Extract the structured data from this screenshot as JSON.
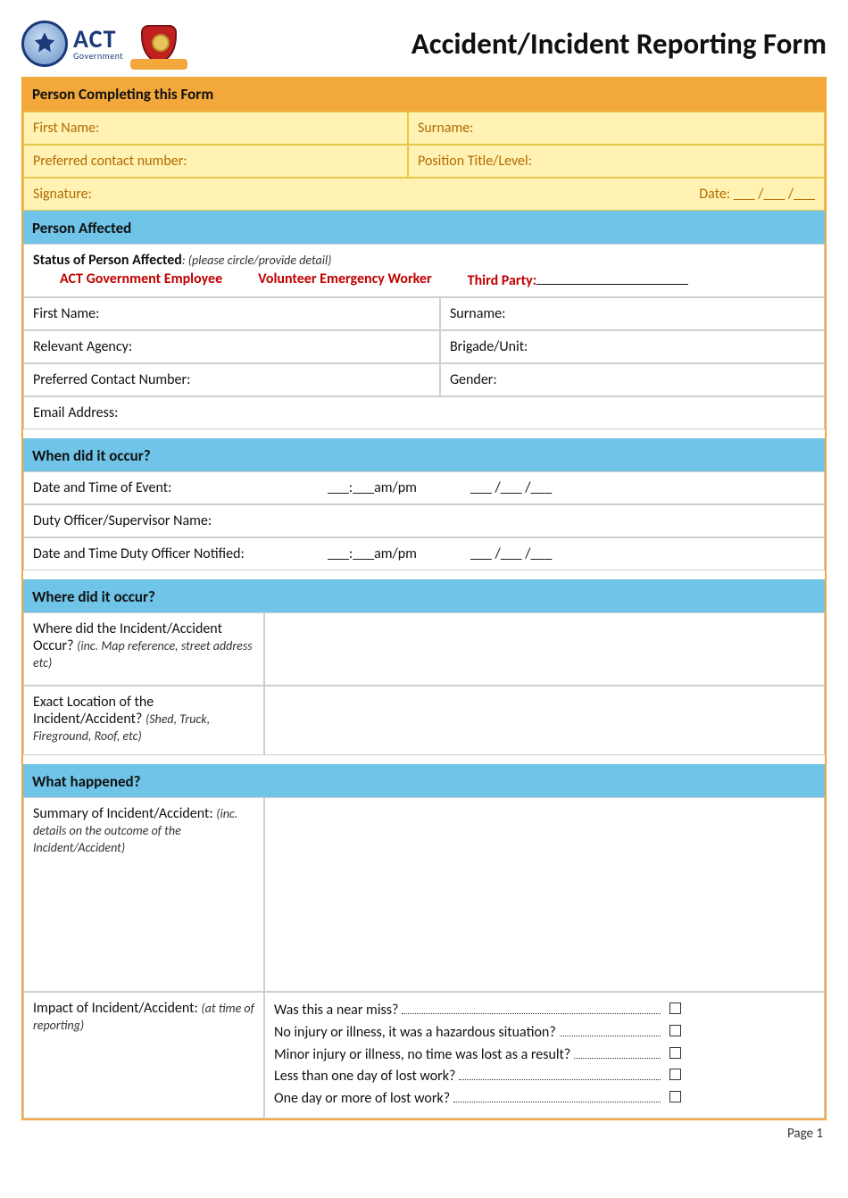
{
  "header": {
    "logo_act_big": "ACT",
    "logo_act_small": "Government",
    "title": "Accident/Incident Reporting Form"
  },
  "colors": {
    "orange": "#f2a83a",
    "yellow": "#fff2b3",
    "yellow_border": "#e6c84a",
    "yellow_text": "#b26a00",
    "blue": "#6fc4e8",
    "white_border": "#cfcfcf",
    "red": "#c00000"
  },
  "sec1": {
    "heading": "Person Completing this Form",
    "first_name": "First Name:",
    "surname": "Surname:",
    "contact": "Preferred contact  number:",
    "position": "Position Title/Level:",
    "signature": "Signature:",
    "date": "Date:  ___ /___ /___"
  },
  "sec2": {
    "heading": "Person Affected",
    "status_label": "Status of Person Affected",
    "status_hint": ": (please circle/provide detail)",
    "opt1": "ACT Government Employee",
    "opt2": "Volunteer Emergency Worker",
    "opt3_label": "Third Party:",
    "first_name": "First Name:",
    "surname": "Surname:",
    "agency": "Relevant Agency:",
    "brigade": "Brigade/Unit:",
    "contact": "Preferred Contact Number:",
    "gender": "Gender:",
    "email": "Email Address:"
  },
  "sec3": {
    "heading": "When did it occur?",
    "dt_label": "Date and Time of Event:",
    "time_blank": "___:___am/pm",
    "date_blank": "___ /___ /___",
    "duty_name": "Duty Officer/Supervisor Name:",
    "dt_notified": "Date and Time Duty Officer Notified:"
  },
  "sec4": {
    "heading": "Where did it occur?",
    "q1_main": "Where did the Incident/Accident Occur? ",
    "q1_hint": "(inc. Map reference, street address etc)",
    "q2_main": "Exact Location of the Incident/Accident? ",
    "q2_hint": "(Shed, Truck, Fireground, Roof, etc)"
  },
  "sec5": {
    "heading": "What happened?",
    "summary_main": "Summary of Incident/Accident: ",
    "summary_hint": "(inc. details on the outcome of the Incident/Accident)",
    "impact_main": "Impact of Incident/Accident: ",
    "impact_hint": "(at time of reporting)",
    "impact_items": [
      "Was this a near miss?",
      "No injury or illness, it was a hazardous situation?",
      "Minor injury or illness, no time was lost as a result?",
      "Less than one day of lost work?",
      "One day or more of lost work?"
    ]
  },
  "footer": {
    "page": "Page 1"
  }
}
